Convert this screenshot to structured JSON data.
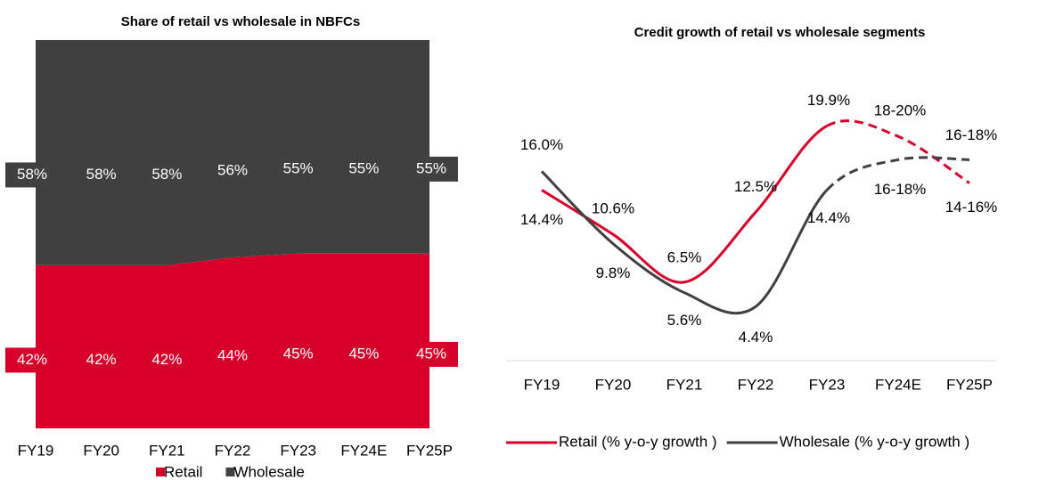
{
  "chart_data": [
    {
      "type": "area",
      "title": "Share of retail vs wholesale in NBFCs",
      "categories": [
        "FY19",
        "FY20",
        "FY21",
        "FY22",
        "FY23",
        "FY24E",
        "FY25P"
      ],
      "series": [
        {
          "name": "Retail",
          "color": "#d7002a",
          "values": [
            42,
            42,
            42,
            44,
            45,
            45,
            45
          ],
          "value_labels": [
            "42%",
            "42%",
            "42%",
            "44%",
            "45%",
            "45%",
            "45%"
          ]
        },
        {
          "name": "Wholesale",
          "color": "#404040",
          "values": [
            58,
            58,
            58,
            56,
            55,
            55,
            55
          ],
          "value_labels": [
            "58%",
            "58%",
            "58%",
            "56%",
            "55%",
            "55%",
            "55%"
          ]
        }
      ],
      "stacked": true,
      "ylim": [
        0,
        100
      ],
      "legend": "bottom"
    },
    {
      "type": "line",
      "title": "Credit growth of retail vs wholesale segments",
      "categories": [
        "FY19",
        "FY20",
        "FY21",
        "FY22",
        "FY23",
        "FY24E",
        "FY25P"
      ],
      "series": [
        {
          "name": "Retail (% y-o-y growth )",
          "color": "#d7002a",
          "values": [
            14.4,
            10.6,
            6.5,
            12.5,
            19.9,
            19,
            15
          ],
          "value_labels": [
            "14.4%",
            "10.6%",
            "6.5%",
            "12.5%",
            "19.9%",
            "18-20%",
            "14-16%"
          ]
        },
        {
          "name": "Wholesale (% y-o-y growth )",
          "color": "#404040",
          "values": [
            16.0,
            9.8,
            5.6,
            4.4,
            14.4,
            17,
            17
          ],
          "value_labels": [
            "16.0%",
            "9.8%",
            "5.6%",
            "4.4%",
            "14.4%",
            "16-18%",
            "16-18%"
          ]
        }
      ],
      "dashed_from": 4,
      "ylim": [
        0,
        21
      ],
      "smooth": true,
      "legend": "bottom"
    }
  ]
}
